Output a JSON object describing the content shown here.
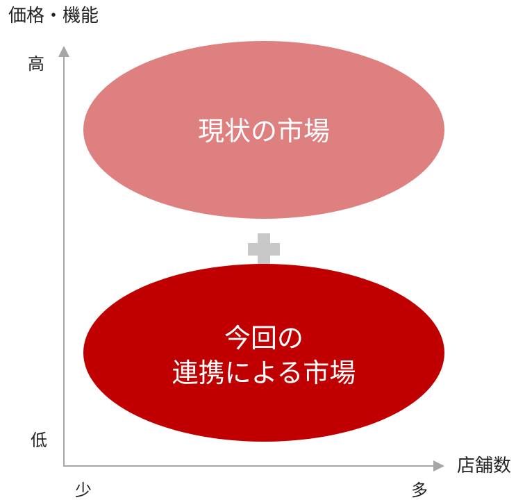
{
  "axes": {
    "y_title": "価格・機能",
    "y_high": "高",
    "y_low": "低",
    "x_title": "店舗数",
    "x_few": "少",
    "x_many": "多"
  },
  "markets": {
    "current": {
      "label": "現状の市場",
      "color": "#de8080"
    },
    "collaboration": {
      "label_line1": "今回の",
      "label_line2": "連携による市場",
      "color": "#c00000"
    }
  },
  "plus": {
    "symbol": "+",
    "color": "#c8c8c8"
  },
  "axis_color": "#a6a6a6"
}
